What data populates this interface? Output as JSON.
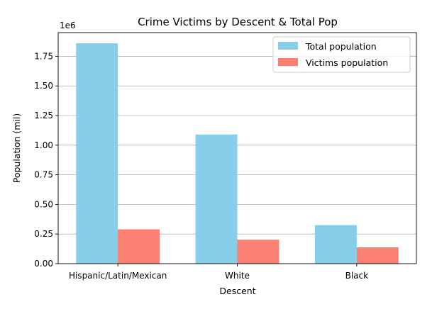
{
  "chart_data": {
    "type": "bar",
    "title": "Crime Victims by Descent & Total Pop",
    "xlabel": "Descent",
    "ylabel": "Population (mil)",
    "offset_text": "1e6",
    "categories": [
      "Hispanic/Latin/Mexican",
      "White",
      "Black"
    ],
    "series": [
      {
        "name": "Total population",
        "color": "#87ceeb",
        "values": [
          1860000,
          1090000,
          325000
        ]
      },
      {
        "name": "Victims population",
        "color": "#fa8072",
        "values": [
          290000,
          202000,
          138000
        ]
      }
    ],
    "ylim": [
      0,
      1950000
    ],
    "yticks": [
      0,
      250000,
      500000,
      750000,
      1000000,
      1250000,
      1500000,
      1750000
    ],
    "ytick_labels": [
      "0.00",
      "0.25",
      "0.50",
      "0.75",
      "1.00",
      "1.25",
      "1.50",
      "1.75"
    ],
    "grid": "y",
    "legend_position": "top-right"
  }
}
